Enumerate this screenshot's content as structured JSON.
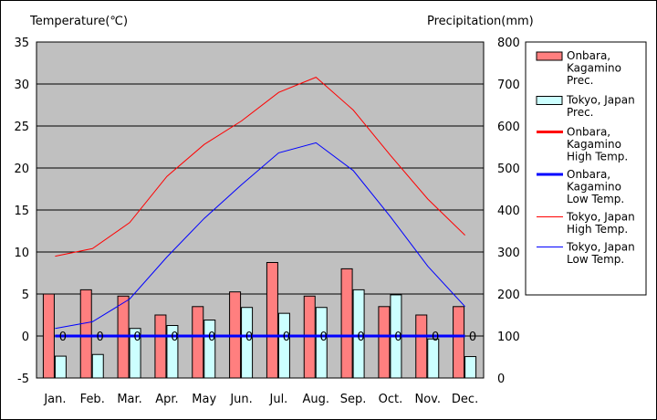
{
  "chart_data": {
    "type": "bar+line",
    "categories": [
      "Jan.",
      "Feb.",
      "Mar.",
      "Apr.",
      "May",
      "Jun.",
      "Jul.",
      "Aug.",
      "Sep.",
      "Oct.",
      "Nov.",
      "Dec."
    ],
    "left_axis": {
      "label": "Temperature(℃)",
      "ylim": [
        -5,
        35
      ],
      "ticks": [
        "35",
        "30",
        "25",
        "20",
        "15",
        "10",
        "5",
        "0",
        "-5"
      ]
    },
    "right_axis": {
      "label": "Precipitation(mm)",
      "ylim": [
        0,
        800
      ],
      "ticks": [
        "800",
        "700",
        "600",
        "500",
        "400",
        "300",
        "200",
        "100",
        "0"
      ]
    },
    "bar_series": [
      {
        "name": [
          "Onbara,",
          "Kagamino",
          "Prec."
        ],
        "color": "#ff7f7f",
        "axis": "precipitation",
        "values": [
          200,
          210,
          195,
          150,
          170,
          205,
          275,
          195,
          260,
          170,
          150,
          170
        ]
      },
      {
        "name": [
          "Tokyo, Japan",
          "Prec."
        ],
        "color": "#ccffff",
        "axis": "precipitation",
        "values": [
          52,
          56,
          118,
          125,
          138,
          168,
          154,
          168,
          210,
          198,
          93,
          51
        ]
      }
    ],
    "line_series": [
      {
        "name": [
          "Onbara,",
          "Kagamino",
          "High Temp."
        ],
        "color": "#ff0000",
        "width": 3,
        "axis": "temperature",
        "values": [
          null,
          null,
          null,
          null,
          null,
          null,
          null,
          null,
          null,
          null,
          null,
          null
        ]
      },
      {
        "name": [
          "Onbara,",
          "Kagamino",
          "Low Temp."
        ],
        "color": "#0000ff",
        "width": 3,
        "axis": "temperature",
        "values": [
          0,
          0,
          0,
          0,
          0,
          0,
          0,
          0,
          0,
          0,
          0,
          0
        ]
      },
      {
        "name": [
          "Tokyo, Japan",
          "High Temp."
        ],
        "color": "#ff0000",
        "width": 1,
        "axis": "temperature",
        "values": [
          9.5,
          10.4,
          13.5,
          19.0,
          22.8,
          25.6,
          29.0,
          30.8,
          26.9,
          21.5,
          16.3,
          12.0
        ]
      },
      {
        "name": [
          "Tokyo, Japan",
          "Low Temp."
        ],
        "color": "#0000ff",
        "width": 1,
        "axis": "temperature",
        "values": [
          0.9,
          1.7,
          4.4,
          9.4,
          14.0,
          18.0,
          21.8,
          23.0,
          19.7,
          14.2,
          8.3,
          3.5
        ]
      }
    ],
    "zero_markers": [
      "0",
      "0",
      "0",
      "0",
      "0",
      "0",
      "0",
      "0",
      "0",
      "0",
      "0",
      "0"
    ],
    "grid": true,
    "plot_background": "#c0c0c0",
    "legend_placement": "right"
  }
}
